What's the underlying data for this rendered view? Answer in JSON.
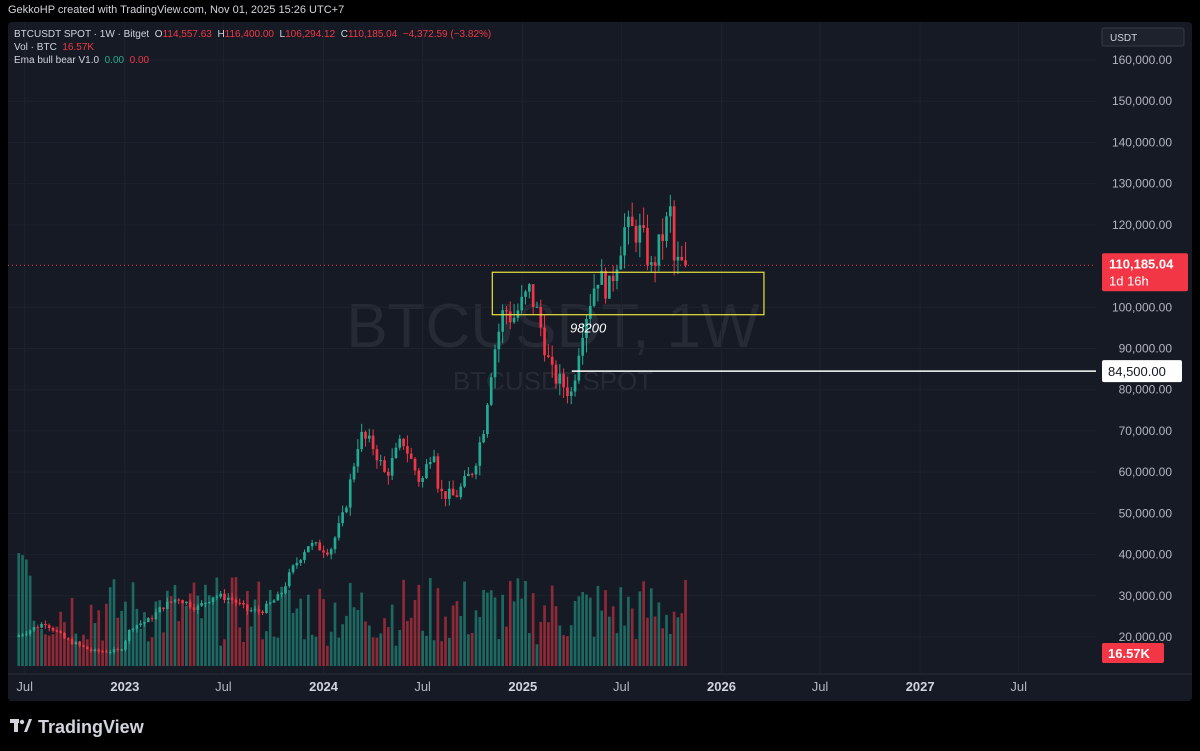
{
  "header": {
    "caption": "GekkoHP created with TradingView.com, Nov 01, 2025 15:26 UTC+7"
  },
  "legend": {
    "symbol": "BTCUSDT SPOT · 1W · Bitget",
    "o_label": "O",
    "o_value": "114,557.63",
    "h_label": "H",
    "h_value": "116,400.00",
    "l_label": "L",
    "l_value": "106,294.12",
    "c_label": "C",
    "c_value": "110,185.04",
    "change": "−4,372.59 (−3.82%)",
    "vol_label": "Vol · BTC",
    "vol_value": "16.57K",
    "indicator_label": "Ema bull bear V1.0",
    "indicator_v1": "0.00",
    "indicator_v2": "0.00"
  },
  "watermark": {
    "main": "BTCUSDT, 1W",
    "sub": "BTCUSDT SPOT"
  },
  "currency": "USDT",
  "branding": "TradingView",
  "colors": {
    "up": "#22ab94",
    "down": "#f23645",
    "box": "#e8e33d",
    "price_line": "#f23645",
    "background": "#161a25"
  },
  "chart_data": {
    "type": "candlestick",
    "title": "BTCUSDT SPOT · 1W · Bitget",
    "ylim": [
      14000,
      165000
    ],
    "y_ticks": [
      "160,000.00",
      "150,000.00",
      "140,000.00",
      "130,000.00",
      "120,000.00",
      "100,000.00",
      "90,000.00",
      "80,000.00",
      "70,000.00",
      "60,000.00",
      "50,000.00",
      "40,000.00",
      "30,000.00",
      "20,000.00"
    ],
    "y_tick_values": [
      160000,
      150000,
      140000,
      130000,
      120000,
      100000,
      90000,
      80000,
      70000,
      60000,
      50000,
      40000,
      30000,
      20000
    ],
    "x_labels": [
      "Jul",
      "2023",
      "Jul",
      "2024",
      "Jul",
      "2025",
      "Jul",
      "2026",
      "Jul",
      "2027",
      "Jul"
    ],
    "x_label_dates": [
      "2022-07-01",
      "2023-01-01",
      "2023-07-01",
      "2024-01-01",
      "2024-07-01",
      "2025-01-01",
      "2025-07-01",
      "2026-01-01",
      "2026-07-01",
      "2027-01-01",
      "2027-07-01"
    ],
    "x_range": [
      "2022-06-15",
      "2027-11-20"
    ],
    "anchors": [
      [
        "2022-06-20",
        20000
      ],
      [
        "2022-08-15",
        23500
      ],
      [
        "2022-09-20",
        19500
      ],
      [
        "2022-11-10",
        16500
      ],
      [
        "2022-12-30",
        16600
      ],
      [
        "2023-01-20",
        22500
      ],
      [
        "2023-02-20",
        24000
      ],
      [
        "2023-03-20",
        27500
      ],
      [
        "2023-04-15",
        29500
      ],
      [
        "2023-05-20",
        27000
      ],
      [
        "2023-06-20",
        30000
      ],
      [
        "2023-07-20",
        29500
      ],
      [
        "2023-08-20",
        26500
      ],
      [
        "2023-09-15",
        26200
      ],
      [
        "2023-10-20",
        30000
      ],
      [
        "2023-11-10",
        36000
      ],
      [
        "2023-12-10",
        42500
      ],
      [
        "2024-01-20",
        41000
      ],
      [
        "2024-02-15",
        50000
      ],
      [
        "2024-03-14",
        69000
      ],
      [
        "2024-04-10",
        66000
      ],
      [
        "2024-05-01",
        59000
      ],
      [
        "2024-06-01",
        68000
      ],
      [
        "2024-07-05",
        57000
      ],
      [
        "2024-07-28",
        67000
      ],
      [
        "2024-08-07",
        55000
      ],
      [
        "2024-09-06",
        54000
      ],
      [
        "2024-10-10",
        61000
      ],
      [
        "2024-10-28",
        71000
      ],
      [
        "2024-11-14",
        88000
      ],
      [
        "2024-12-05",
        100000
      ],
      [
        "2024-12-20",
        97000
      ],
      [
        "2025-01-20",
        104000
      ],
      [
        "2025-02-05",
        98000
      ],
      [
        "2025-03-01",
        84000
      ],
      [
        "2025-04-08",
        79000
      ],
      [
        "2025-04-25",
        94000
      ],
      [
        "2025-05-25",
        108000
      ],
      [
        "2025-06-15",
        104000
      ],
      [
        "2025-07-14",
        119000
      ],
      [
        "2025-08-14",
        118000
      ],
      [
        "2025-09-01",
        109000
      ],
      [
        "2025-10-06",
        123000
      ],
      [
        "2025-10-12",
        111000
      ],
      [
        "2025-10-27",
        110185
      ]
    ],
    "last_price": 110185.04,
    "last_price_label": "110,185.04",
    "countdown": "1d 16h",
    "horizontal_line": {
      "value": 84500,
      "label": "84,500.00",
      "start_date": "2025-04-01"
    },
    "zone": {
      "top": 108500,
      "bottom": 98200,
      "start": "2024-11-06",
      "end": "2026-03-20",
      "label": "98200"
    },
    "volume_last_label": "16.57K"
  }
}
